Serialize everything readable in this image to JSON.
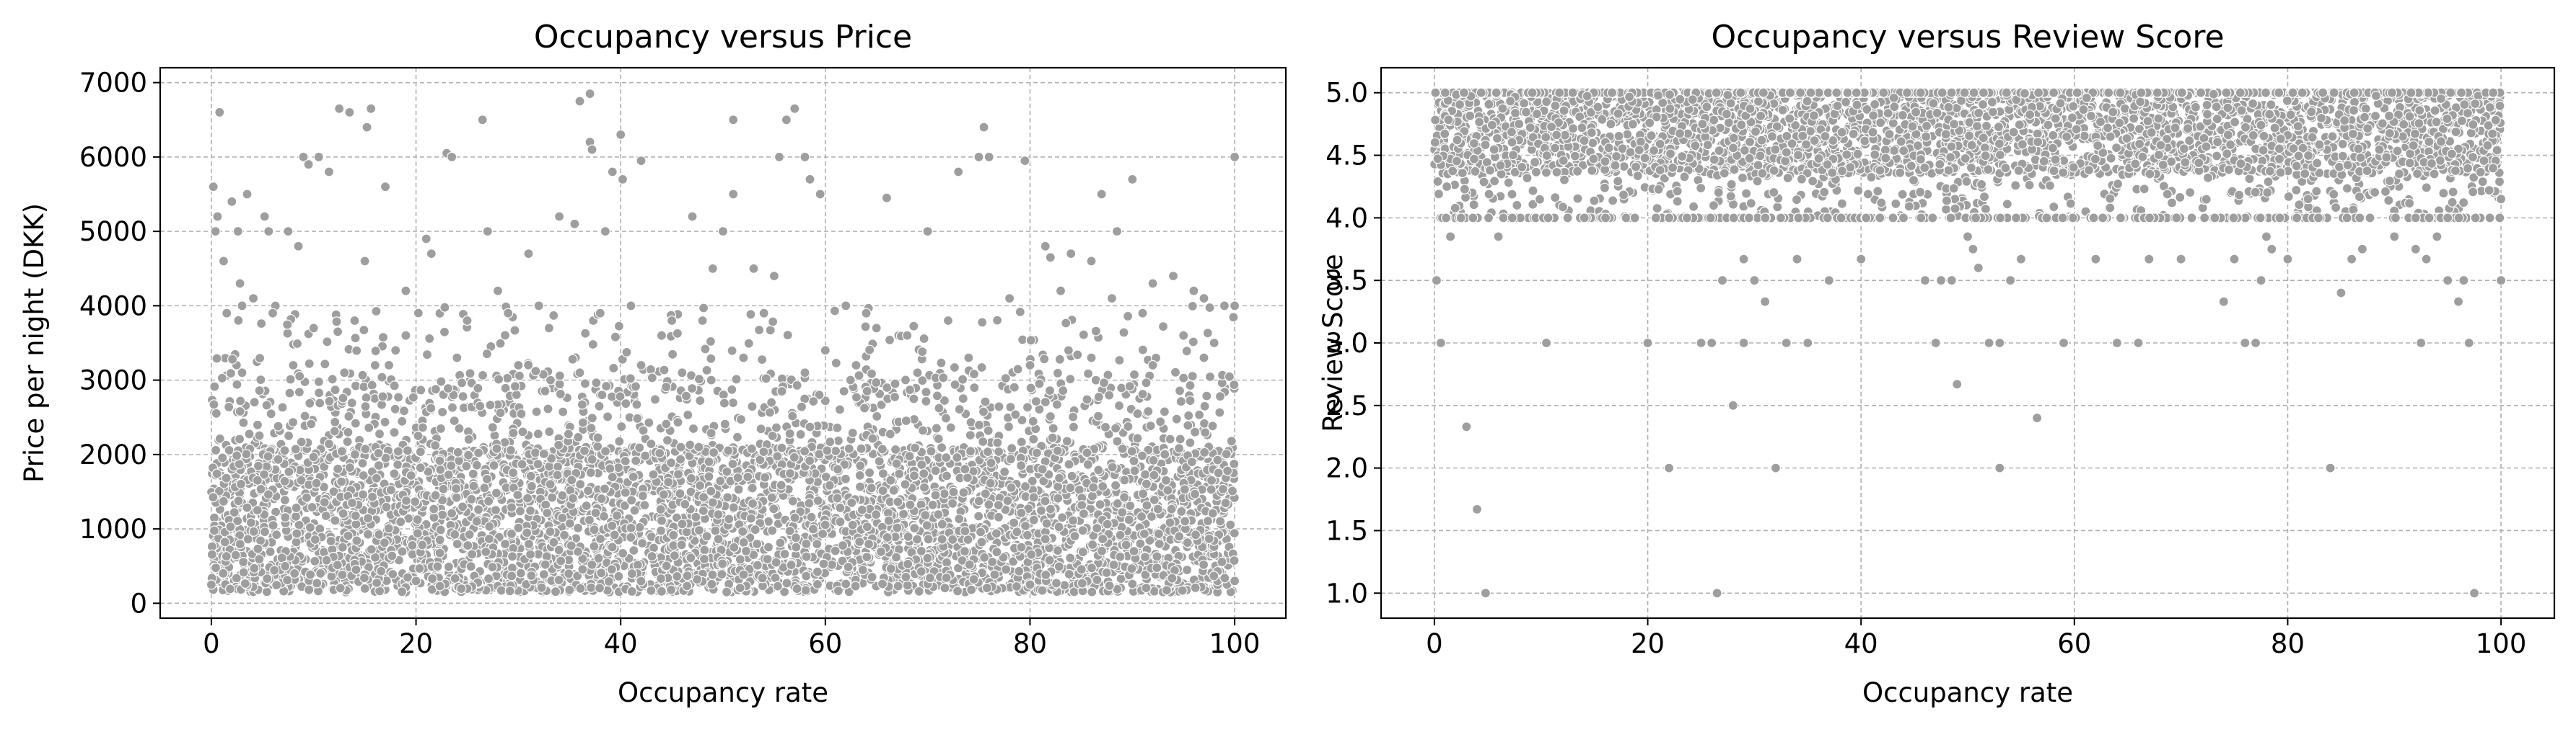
{
  "chart_data": [
    {
      "type": "scatter",
      "title": "Occupancy versus Price",
      "xlabel": "Occupancy rate",
      "ylabel": "Price per night (DKK)",
      "xlim": [
        -5,
        105
      ],
      "ylim": [
        -200,
        7200
      ],
      "xticks": [
        0,
        20,
        40,
        60,
        80,
        100
      ],
      "xtick_labels": [
        "0",
        "20",
        "40",
        "60",
        "80",
        "100"
      ],
      "yticks": [
        0,
        1000,
        2000,
        3000,
        4000,
        5000,
        6000,
        7000
      ],
      "ytick_labels": [
        "0",
        "1000",
        "2000",
        "3000",
        "4000",
        "5000",
        "6000",
        "7000"
      ],
      "grid": true,
      "point_color": "#9e9e9e",
      "point_edge_color": "#ffffff",
      "points": [
        [
          0.2,
          5600
        ],
        [
          0.6,
          5200
        ],
        [
          0.8,
          6600
        ],
        [
          0.4,
          5000
        ],
        [
          1.2,
          4600
        ],
        [
          2,
          5400
        ],
        [
          3.5,
          5500
        ],
        [
          2.6,
          5000
        ],
        [
          5.2,
          5200
        ],
        [
          5.6,
          5000
        ],
        [
          4.1,
          4100
        ],
        [
          1.5,
          3900
        ],
        [
          2.8,
          4300
        ],
        [
          3,
          4000
        ],
        [
          7.5,
          5000
        ],
        [
          8.5,
          4800
        ],
        [
          9,
          6000
        ],
        [
          9.5,
          5900
        ],
        [
          10.5,
          6000
        ],
        [
          11.5,
          5800
        ],
        [
          12.5,
          6650
        ],
        [
          13.5,
          6600
        ],
        [
          15,
          4600
        ],
        [
          15.2,
          6400
        ],
        [
          15.6,
          6650
        ],
        [
          17,
          5600
        ],
        [
          19,
          4200
        ],
        [
          21,
          4900
        ],
        [
          21.5,
          4700
        ],
        [
          23,
          6050
        ],
        [
          23.5,
          6000
        ],
        [
          26.5,
          6500
        ],
        [
          27,
          5000
        ],
        [
          28,
          4200
        ],
        [
          31,
          4700
        ],
        [
          32,
          4000
        ],
        [
          34,
          5200
        ],
        [
          35.5,
          5100
        ],
        [
          36,
          6750
        ],
        [
          37,
          6850
        ],
        [
          37,
          6200
        ],
        [
          37.2,
          6100
        ],
        [
          38.5,
          5000
        ],
        [
          39.2,
          5800
        ],
        [
          40,
          6300
        ],
        [
          40.2,
          5700
        ],
        [
          41,
          4000
        ],
        [
          42,
          5950
        ],
        [
          45,
          3800
        ],
        [
          47,
          5200
        ],
        [
          49,
          4500
        ],
        [
          50,
          5000
        ],
        [
          51,
          5500
        ],
        [
          51,
          6500
        ],
        [
          53,
          4500
        ],
        [
          55,
          4400
        ],
        [
          55.5,
          6000
        ],
        [
          56.2,
          6500
        ],
        [
          57,
          6650
        ],
        [
          58,
          6000
        ],
        [
          58.5,
          5700
        ],
        [
          59.5,
          5500
        ],
        [
          62,
          4000
        ],
        [
          64,
          3900
        ],
        [
          66,
          5450
        ],
        [
          70,
          5000
        ],
        [
          73,
          5800
        ],
        [
          75,
          6000
        ],
        [
          75.5,
          6400
        ],
        [
          76,
          6000
        ],
        [
          79.5,
          5950
        ],
        [
          81.5,
          4800
        ],
        [
          82,
          4650
        ],
        [
          84,
          4700
        ],
        [
          86,
          4600
        ],
        [
          87,
          5500
        ],
        [
          88.5,
          5000
        ],
        [
          90,
          5700
        ],
        [
          92,
          4300
        ],
        [
          94,
          4400
        ],
        [
          96,
          4200
        ],
        [
          97,
          4100
        ],
        [
          99,
          4000
        ],
        [
          100,
          6000
        ],
        [
          100,
          4000
        ],
        [
          98,
          3500
        ],
        [
          95,
          3600
        ],
        [
          91,
          3900
        ],
        [
          88,
          4100
        ],
        [
          83,
          4200
        ],
        [
          78,
          4100
        ],
        [
          72,
          3800
        ],
        [
          68,
          3600
        ],
        [
          65,
          3700
        ],
        [
          60,
          3400
        ],
        [
          54,
          3900
        ],
        [
          48,
          3800
        ],
        [
          44,
          3600
        ],
        [
          38,
          3900
        ],
        [
          33,
          3700
        ],
        [
          29,
          3900
        ],
        [
          25,
          3800
        ],
        [
          19,
          3600
        ],
        [
          14,
          3800
        ],
        [
          10,
          3700
        ],
        [
          6,
          3900
        ],
        [
          18,
          3400
        ],
        [
          24,
          3300
        ],
        [
          30,
          3200
        ],
        [
          36,
          3100
        ],
        [
          42,
          3200
        ],
        [
          46,
          3100
        ],
        [
          52,
          3300
        ],
        [
          58,
          3100
        ],
        [
          63,
          3200
        ],
        [
          69,
          3100
        ],
        [
          74,
          3300
        ],
        [
          80,
          3200
        ],
        [
          86,
          3300
        ],
        [
          92,
          3200
        ],
        [
          97,
          3300
        ],
        [
          3,
          3100
        ],
        [
          8,
          3200
        ],
        [
          13,
          3100
        ],
        [
          16,
          3200
        ],
        [
          44,
          160
        ],
        [
          35,
          180
        ],
        [
          0,
          250
        ],
        [
          100,
          300
        ],
        [
          62,
          260
        ],
        [
          80,
          250
        ],
        [
          20,
          300
        ],
        [
          90,
          260
        ]
      ]
    },
    {
      "type": "scatter",
      "title": "Occupancy versus Review Score",
      "xlabel": "Occupancy rate",
      "ylabel": "Review Score",
      "xlim": [
        -5,
        105
      ],
      "ylim": [
        0.8,
        5.2
      ],
      "xticks": [
        0,
        20,
        40,
        60,
        80,
        100
      ],
      "xtick_labels": [
        "0",
        "20",
        "40",
        "60",
        "80",
        "100"
      ],
      "yticks": [
        1.0,
        1.5,
        2.0,
        2.5,
        3.0,
        3.5,
        4.0,
        4.5,
        5.0
      ],
      "ytick_labels": [
        "1.0",
        "1.5",
        "2.0",
        "2.5",
        "3.0",
        "3.5",
        "4.0",
        "4.5",
        "5.0"
      ],
      "grid": true,
      "point_color": "#9e9e9e",
      "point_edge_color": "#ffffff",
      "points": [
        [
          0.2,
          3.5
        ],
        [
          0.6,
          3.0
        ],
        [
          1.5,
          3.85
        ],
        [
          3,
          2.33
        ],
        [
          4,
          1.67
        ],
        [
          4.8,
          1.0
        ],
        [
          6,
          3.85
        ],
        [
          10.5,
          3.0
        ],
        [
          20,
          3.0
        ],
        [
          22,
          2.0
        ],
        [
          25,
          3.0
        ],
        [
          26,
          3.0
        ],
        [
          26.5,
          1.0
        ],
        [
          27,
          3.5
        ],
        [
          28,
          2.5
        ],
        [
          29,
          3.67
        ],
        [
          29,
          3.0
        ],
        [
          30,
          3.5
        ],
        [
          31,
          3.33
        ],
        [
          32,
          2.0
        ],
        [
          33,
          3.0
        ],
        [
          34,
          3.67
        ],
        [
          35,
          3.0
        ],
        [
          37,
          3.5
        ],
        [
          40,
          3.67
        ],
        [
          46,
          3.5
        ],
        [
          47,
          3.0
        ],
        [
          47.5,
          3.5
        ],
        [
          48.5,
          3.5
        ],
        [
          49,
          2.67
        ],
        [
          50,
          3.85
        ],
        [
          50.5,
          3.75
        ],
        [
          51,
          3.6
        ],
        [
          52,
          3.0
        ],
        [
          53,
          3.0
        ],
        [
          53,
          2.0
        ],
        [
          54,
          3.5
        ],
        [
          55,
          3.67
        ],
        [
          56.5,
          2.4
        ],
        [
          59,
          3.0
        ],
        [
          62,
          3.67
        ],
        [
          64,
          3.0
        ],
        [
          66,
          3.0
        ],
        [
          67,
          3.67
        ],
        [
          70,
          3.67
        ],
        [
          74,
          3.33
        ],
        [
          75,
          3.67
        ],
        [
          76,
          3.0
        ],
        [
          77,
          3.0
        ],
        [
          77.5,
          3.5
        ],
        [
          78,
          3.85
        ],
        [
          78.5,
          3.75
        ],
        [
          80,
          3.67
        ],
        [
          84,
          2.0
        ],
        [
          85,
          3.4
        ],
        [
          86,
          3.67
        ],
        [
          87,
          3.75
        ],
        [
          90,
          3.85
        ],
        [
          92,
          3.75
        ],
        [
          92.5,
          3.0
        ],
        [
          93,
          3.67
        ],
        [
          94,
          3.85
        ],
        [
          95,
          3.5
        ],
        [
          96,
          3.33
        ],
        [
          96.5,
          3.5
        ],
        [
          97,
          3.0
        ],
        [
          97.5,
          1.0
        ],
        [
          100,
          3.5
        ],
        [
          100,
          4.15
        ]
      ]
    }
  ]
}
